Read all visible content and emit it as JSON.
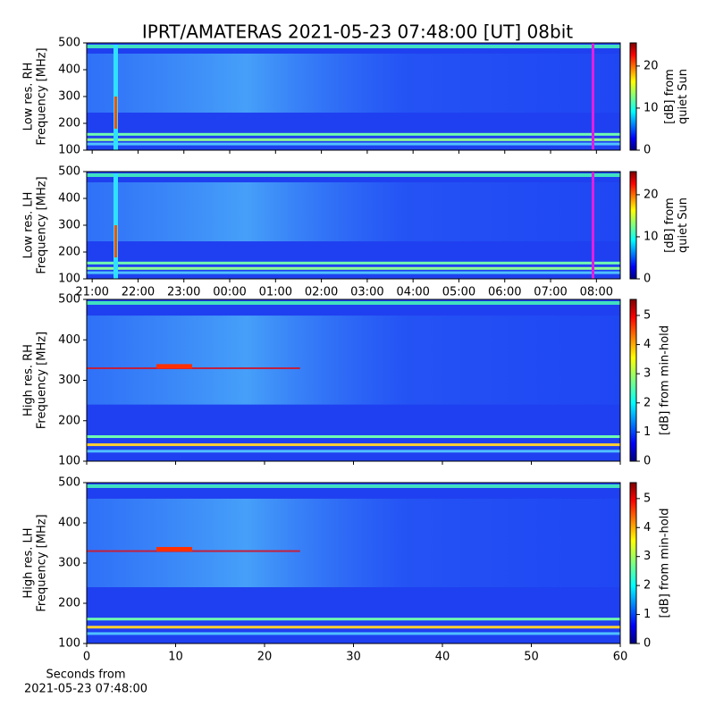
{
  "title": "IPRT/AMATERAS 2021-05-23 07:48:00 [UT]   08bit",
  "chart_data": [
    {
      "type": "spectrogram",
      "ylabel": [
        "Low res. RH",
        "Frequency [MHz]"
      ],
      "ylim": [
        100,
        500
      ],
      "yticks": [
        100,
        200,
        300,
        400,
        500
      ],
      "colorbar": {
        "label": [
          "[dB] from",
          "quiet Sun"
        ],
        "lim": [
          0,
          25.5
        ],
        "ticks": [
          0,
          10,
          20
        ]
      }
    },
    {
      "type": "spectrogram",
      "ylabel": [
        "Low res. LH",
        "Frequency [MHz]"
      ],
      "ylim": [
        100,
        500
      ],
      "yticks": [
        100,
        200,
        300,
        400,
        500
      ],
      "xlim": [
        20.88,
        32.52
      ],
      "xticks": [
        {
          "value": 21,
          "label": "21:00"
        },
        {
          "value": 22,
          "label": "22:00"
        },
        {
          "value": 23,
          "label": "23:00"
        },
        {
          "value": 24,
          "label": "00:00"
        },
        {
          "value": 25,
          "label": "01:00"
        },
        {
          "value": 26,
          "label": "02:00"
        },
        {
          "value": 27,
          "label": "03:00"
        },
        {
          "value": 28,
          "label": "04:00"
        },
        {
          "value": 29,
          "label": "05:00"
        },
        {
          "value": 30,
          "label": "06:00"
        },
        {
          "value": 31,
          "label": "07:00"
        },
        {
          "value": 32,
          "label": "08:00"
        }
      ],
      "colorbar": {
        "label": [
          "[dB] from",
          "quiet Sun"
        ],
        "lim": [
          0,
          25.5
        ],
        "ticks": [
          0,
          10,
          20
        ]
      }
    },
    {
      "type": "spectrogram",
      "ylabel": [
        "High res. RH",
        "Frequency [MHz]"
      ],
      "ylim": [
        100,
        500
      ],
      "yticks": [
        100,
        200,
        300,
        400,
        500
      ],
      "colorbar": {
        "label": [
          "[dB] from min-hold"
        ],
        "lim": [
          0,
          5.55
        ],
        "ticks": [
          0,
          1,
          2,
          3,
          4,
          5
        ]
      }
    },
    {
      "type": "spectrogram",
      "ylabel": [
        "High res. LH",
        "Frequency [MHz]"
      ],
      "ylim": [
        100,
        500
      ],
      "yticks": [
        100,
        200,
        300,
        400,
        500
      ],
      "xlim": [
        0,
        60
      ],
      "xticks": [
        0,
        10,
        20,
        30,
        40,
        50,
        60
      ],
      "xlabel": [
        "Seconds from",
        "2021-05-23 07:48:00"
      ],
      "colorbar": {
        "label": [
          "[dB] from min-hold"
        ],
        "lim": [
          0,
          5.55
        ],
        "ticks": [
          0,
          1,
          2,
          3,
          4,
          5
        ]
      }
    }
  ]
}
